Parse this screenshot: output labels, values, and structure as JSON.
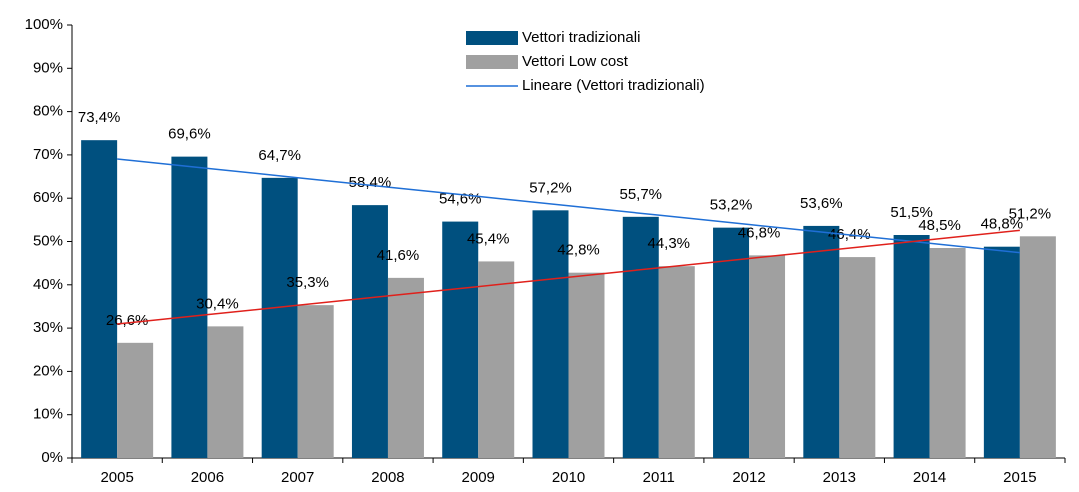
{
  "chart_data": {
    "type": "bar",
    "categories": [
      "2005",
      "2006",
      "2007",
      "2008",
      "2009",
      "2010",
      "2011",
      "2012",
      "2013",
      "2014",
      "2015"
    ],
    "series": [
      {
        "name": "Vettori tradizionali",
        "color": "#00507f",
        "values": [
          73.4,
          69.6,
          64.7,
          58.4,
          54.6,
          57.2,
          55.7,
          53.2,
          53.6,
          51.5,
          48.8
        ],
        "value_labels": [
          "73,4%",
          "69,6%",
          "64,7%",
          "58,4%",
          "54,6%",
          "57,2%",
          "55,7%",
          "53,2%",
          "53,6%",
          "51,5%",
          "48,8%"
        ]
      },
      {
        "name": "Vettori Low cost",
        "color": "#a0a0a0",
        "values": [
          26.6,
          30.4,
          35.3,
          41.6,
          45.4,
          42.8,
          44.3,
          46.8,
          46.4,
          48.5,
          51.2
        ],
        "value_labels": [
          "26,6%",
          "30,4%",
          "35,3%",
          "41,6%",
          "45,4%",
          "42,8%",
          "44,3%",
          "46,8%",
          "46,4%",
          "48,5%",
          "51,2%"
        ]
      }
    ],
    "trendlines": [
      {
        "name": "Lineare (Vettori tradizionali)",
        "color": "#1f6fd6",
        "values": [
          69.06,
          66.9,
          64.73,
          62.57,
          60.41,
          58.25,
          56.08,
          53.92,
          51.76,
          49.59,
          47.43
        ]
      },
      {
        "color": "#e0201b",
        "values": [
          30.94,
          33.1,
          35.27,
          37.43,
          39.59,
          41.75,
          43.92,
          46.08,
          48.24,
          50.41,
          52.57
        ]
      }
    ],
    "ylim": [
      0,
      100
    ],
    "yticks": [
      {
        "value": 0,
        "label": "0%"
      },
      {
        "value": 10,
        "label": "10%"
      },
      {
        "value": 20,
        "label": "20%"
      },
      {
        "value": 30,
        "label": "30%"
      },
      {
        "value": 40,
        "label": "40%"
      },
      {
        "value": 50,
        "label": "50%"
      },
      {
        "value": 60,
        "label": "60%"
      },
      {
        "value": 70,
        "label": "70%"
      },
      {
        "value": 80,
        "label": "80%"
      },
      {
        "value": 90,
        "label": "90%"
      },
      {
        "value": 100,
        "label": "100%"
      }
    ],
    "grid": false,
    "legend": "top"
  }
}
